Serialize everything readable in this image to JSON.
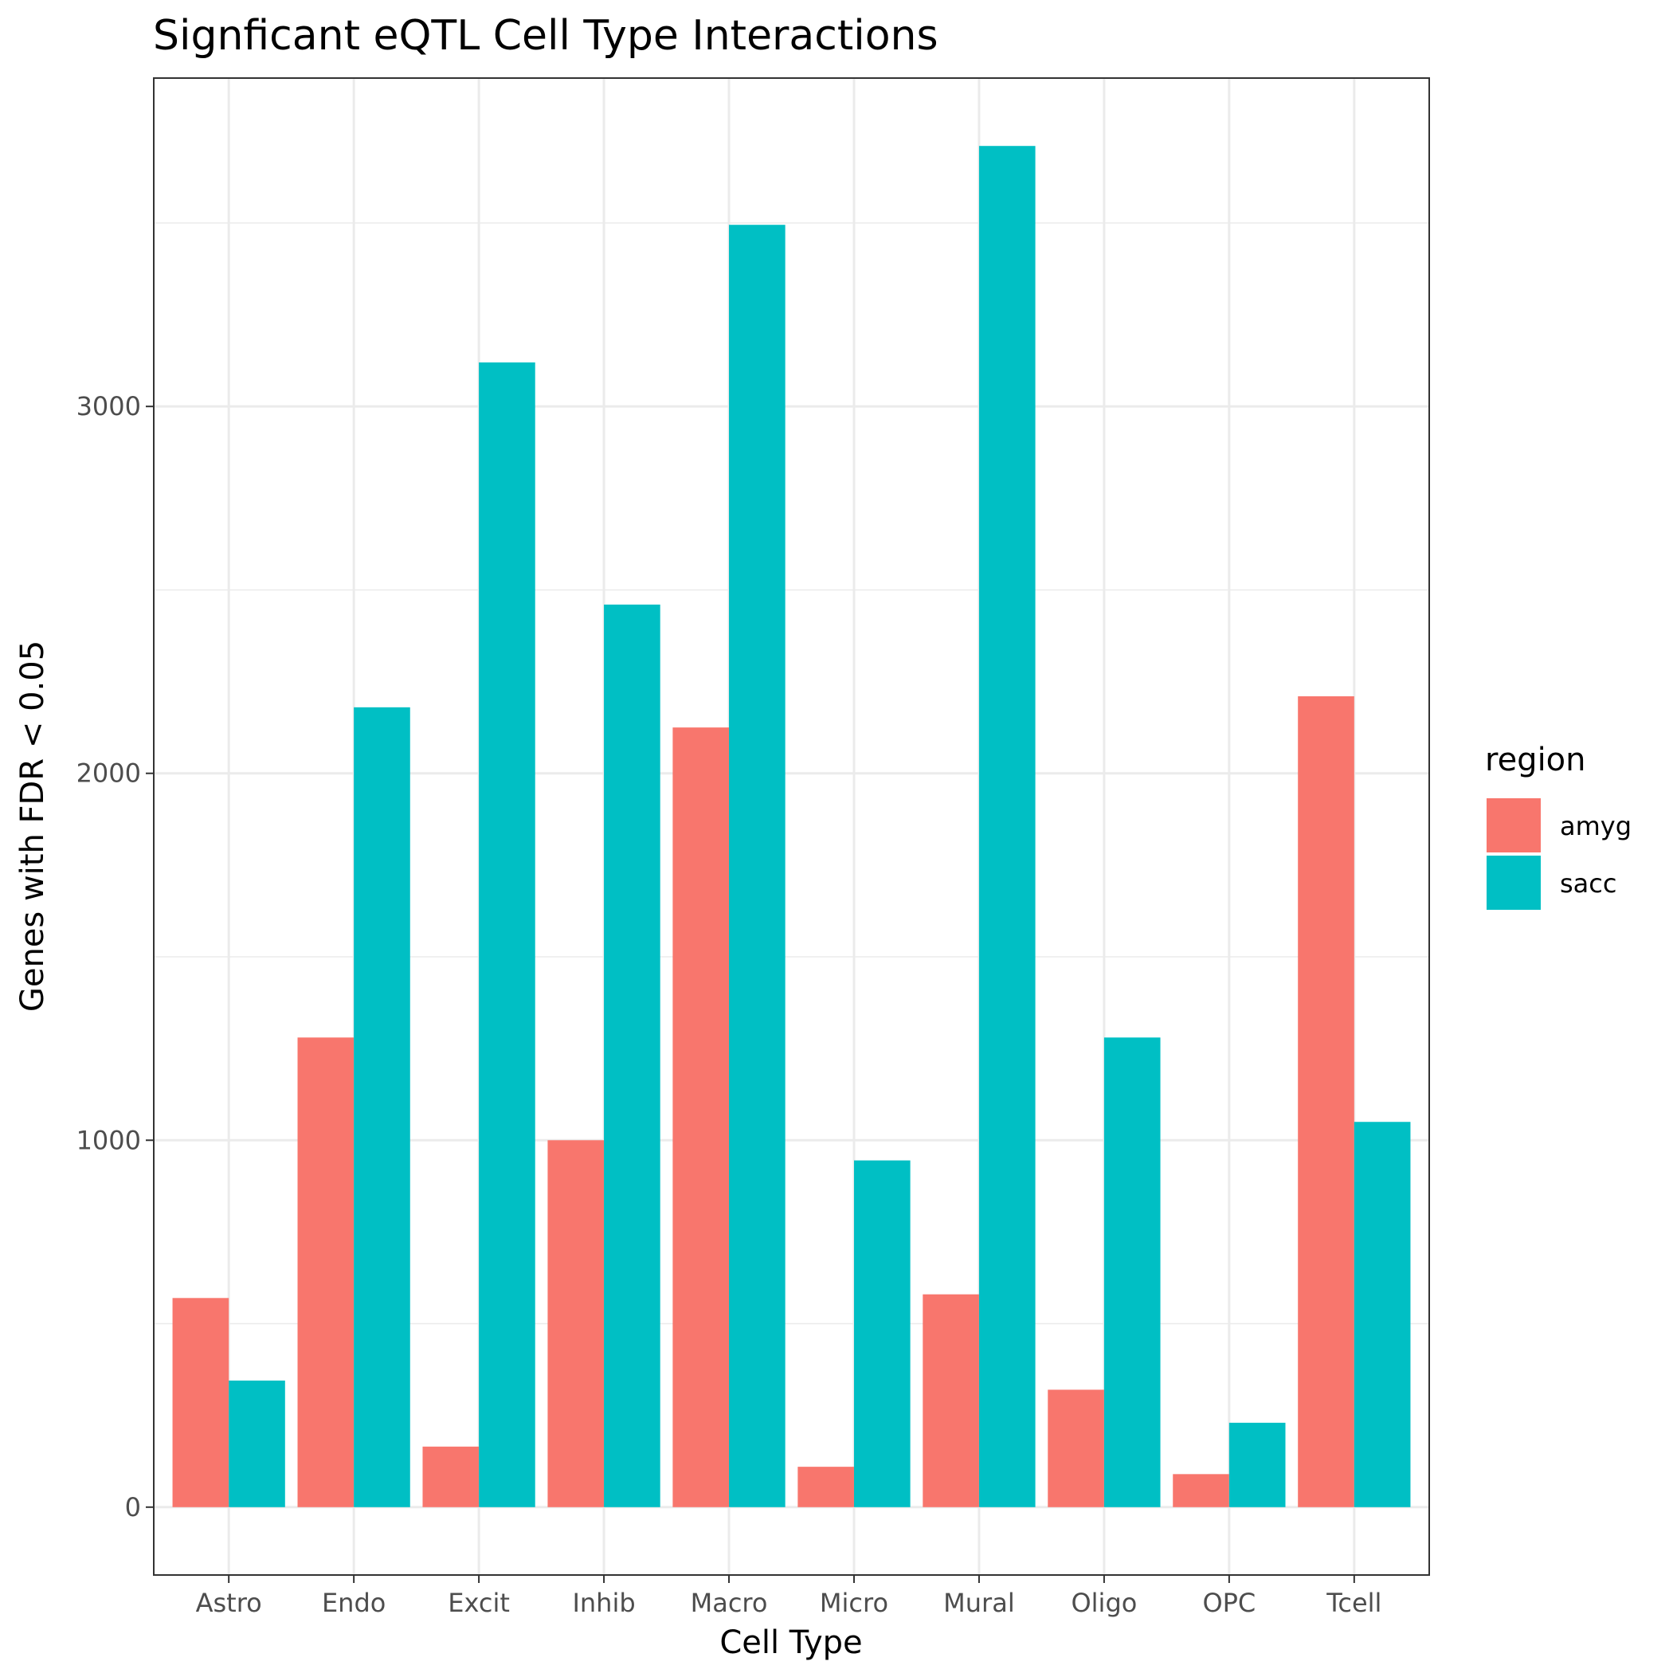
{
  "chart_data": {
    "type": "bar",
    "title": "Signficant eQTL Cell Type Interactions",
    "xlabel": "Cell Type",
    "ylabel": "Genes with FDR < 0.05",
    "categories": [
      "Astro",
      "Endo",
      "Excit",
      "Inhib",
      "Macro",
      "Micro",
      "Mural",
      "Oligo",
      "OPC",
      "Tcell"
    ],
    "series": [
      {
        "name": "amyg",
        "color": "#f8766d",
        "values": [
          570,
          1280,
          165,
          1000,
          2125,
          110,
          580,
          320,
          90,
          2210
        ]
      },
      {
        "name": "sacc",
        "color": "#00bfc4",
        "values": [
          345,
          2180,
          3120,
          2460,
          3495,
          945,
          3710,
          1280,
          230,
          1050
        ]
      }
    ],
    "ylim": [
      -185,
      3895
    ],
    "yticks": [
      0,
      1000,
      2000,
      3000
    ],
    "grid": true,
    "legend": {
      "title": "region",
      "position": "right"
    }
  }
}
